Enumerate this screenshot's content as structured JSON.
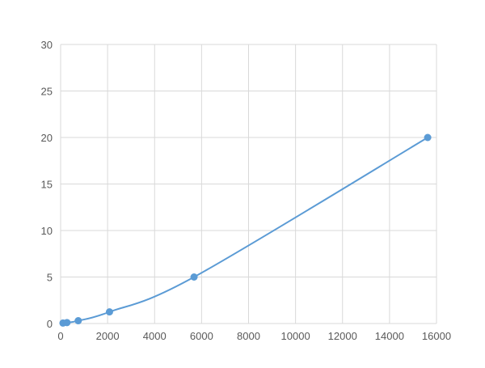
{
  "chart_data": {
    "type": "line",
    "title": "",
    "xlabel": "",
    "ylabel": "",
    "xlim": [
      0,
      16000
    ],
    "ylim": [
      0,
      30
    ],
    "xticks": [
      "0",
      "2000",
      "4000",
      "6000",
      "8000",
      "10000",
      "12000",
      "14000",
      "16000"
    ],
    "yticks": [
      "0",
      "5",
      "10",
      "15",
      "20",
      "25",
      "30"
    ],
    "grid": true,
    "legend": "none",
    "smooth": true,
    "color": "#5b9bd5",
    "series": [
      {
        "x": [
          100,
          270,
          750,
          2080,
          5680,
          15625
        ],
        "y": [
          0.05,
          0.1,
          0.3,
          1.25,
          5,
          20
        ]
      }
    ]
  }
}
